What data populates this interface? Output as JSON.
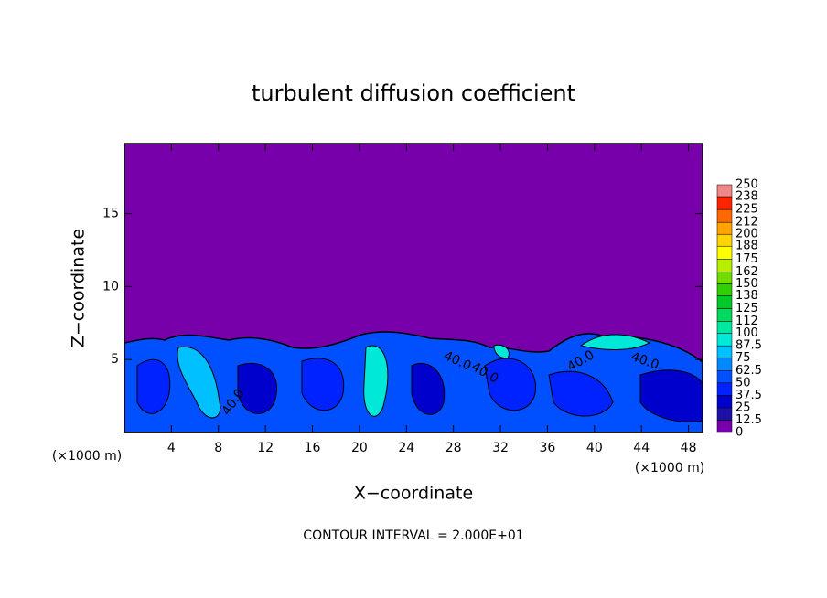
{
  "chart_data": {
    "type": "contour",
    "title": "turbulent diffusion coefficient",
    "xlabel": "X−coordinate",
    "ylabel": "Z−coordinate",
    "x_unit": "(×1000 m)",
    "annotation": "CONTOUR INTERVAL = 2.000E+01",
    "contour_labels": [
      "40.0",
      "40.0",
      "40.0",
      "40.0",
      "40.0"
    ],
    "xlim": [
      0,
      49.2
    ],
    "ylim": [
      0,
      19.8
    ],
    "xticks": [
      4,
      8,
      12,
      16,
      20,
      24,
      28,
      32,
      36,
      40,
      44,
      48
    ],
    "yticks": [
      5,
      10,
      15
    ],
    "colorbar": {
      "levels": [
        0,
        12.5,
        25,
        37.5,
        50,
        62.5,
        75,
        87.5,
        100,
        112,
        125,
        138,
        150,
        162,
        175,
        188,
        200,
        212,
        225,
        238,
        250
      ],
      "colors": [
        "#7800aa",
        "#1c10a8",
        "#0000cc",
        "#0022ff",
        "#0050ff",
        "#0088ff",
        "#00c0ff",
        "#00e8d8",
        "#00e8a0",
        "#00d860",
        "#00c828",
        "#30d000",
        "#70dc00",
        "#b8ee00",
        "#ffff00",
        "#ffd400",
        "#ffa400",
        "#ff6800",
        "#ff2400",
        "#f08888"
      ]
    }
  }
}
